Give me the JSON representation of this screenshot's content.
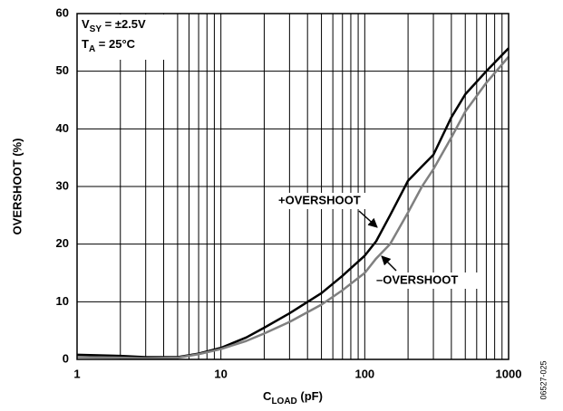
{
  "chart_data": {
    "type": "line",
    "x_label": {
      "main": "C",
      "sub": "LOAD",
      "rest": " (pF)"
    },
    "y_label": "OVERSHOOT (%)",
    "conditions": [
      {
        "main": "V",
        "sub": "SY",
        "rest": " = ±2.5V"
      },
      {
        "main": "T",
        "sub": "A",
        "rest": " = 25°C"
      }
    ],
    "annotations": [
      "+OVERSHOOT",
      "–OVERSHOOT"
    ],
    "figure_id": "06527-025",
    "x": [
      1,
      2,
      3,
      5,
      7,
      10,
      15,
      20,
      30,
      50,
      70,
      100,
      120,
      150,
      200,
      250,
      300,
      400,
      500,
      700,
      1000
    ],
    "series": [
      {
        "name": "+OVERSHOOT",
        "color": "#000000",
        "values": [
          0.8,
          0.6,
          0.4,
          0.4,
          1.0,
          2.0,
          3.8,
          5.5,
          8.0,
          11.5,
          14.5,
          18,
          20.5,
          25,
          31,
          33.5,
          35.5,
          42,
          46,
          50,
          54
        ]
      },
      {
        "name": "–OVERSHOOT",
        "color": "#808080",
        "values": [
          0.4,
          0.3,
          0.2,
          0.3,
          0.9,
          1.8,
          3.2,
          4.5,
          6.5,
          9.5,
          12,
          15,
          17.5,
          20,
          25.5,
          30,
          33,
          38.5,
          43,
          48,
          52.5
        ]
      }
    ],
    "xlim": [
      1,
      1000
    ],
    "xticks": [
      1,
      10,
      100,
      1000
    ],
    "xlog": true,
    "ylim": [
      0,
      60
    ],
    "yticks": [
      0,
      10,
      20,
      30,
      40,
      50,
      60
    ],
    "grid": true
  }
}
